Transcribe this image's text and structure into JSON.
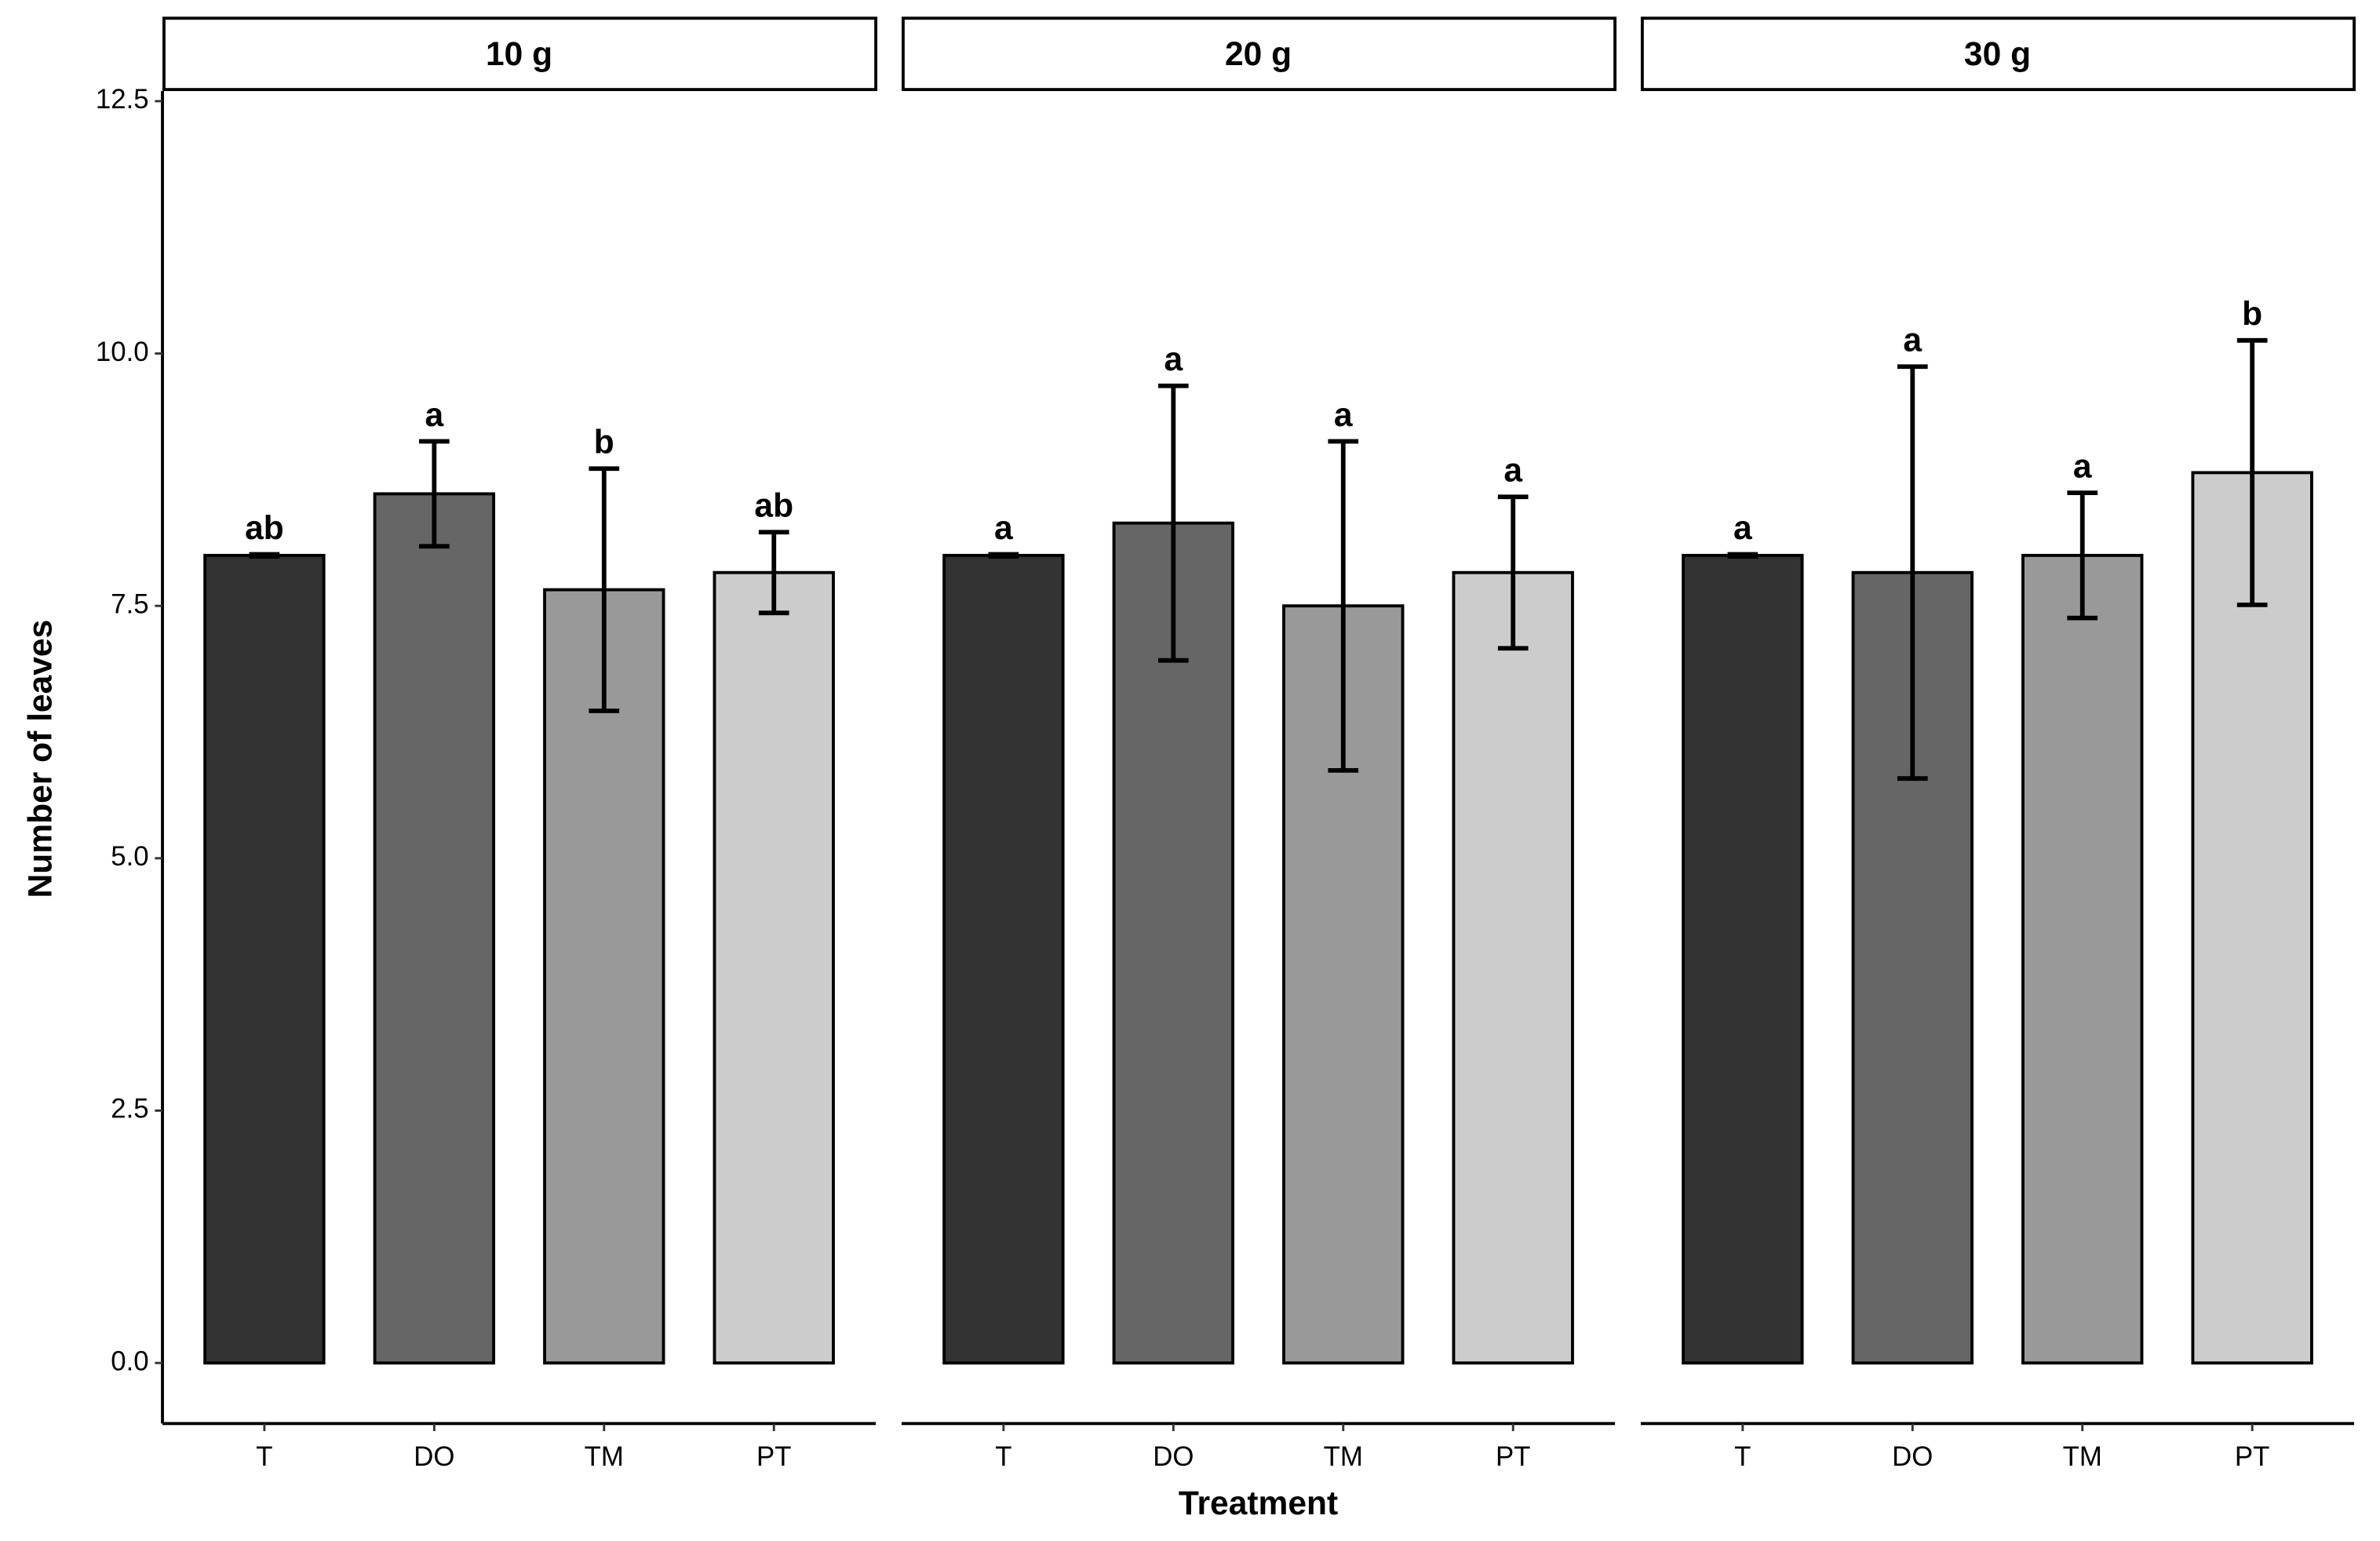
{
  "chart_data": {
    "type": "bar",
    "ylabel": "Number of leaves",
    "xlabel": "Treatment",
    "ylim": [
      -0.6,
      12.6
    ],
    "yticks": [
      {
        "value": 0,
        "label": "0.0"
      },
      2.5,
      {
        "value": 5,
        "label": "5.0"
      },
      7.5,
      {
        "value": 10,
        "label": "10.0"
      },
      12.5
    ],
    "colors": [
      "#333333",
      "#666666",
      "#999999",
      "#cccccc"
    ],
    "facets": [
      {
        "title": "10 g",
        "categories": [
          "T",
          "DO",
          "TM",
          "PT"
        ],
        "values": [
          8.0,
          8.61,
          7.66,
          7.83
        ],
        "errors": [
          0.01,
          0.52,
          1.2,
          0.4
        ],
        "letters": [
          "ab",
          "a",
          "b",
          "ab"
        ]
      },
      {
        "title": "20 g",
        "categories": [
          "T",
          "DO",
          "TM",
          "PT"
        ],
        "values": [
          8.0,
          8.32,
          7.5,
          7.83
        ],
        "errors": [
          0.01,
          1.36,
          1.63,
          0.75
        ],
        "letters": [
          "a",
          "a",
          "a",
          "a"
        ]
      },
      {
        "title": "30 g",
        "categories": [
          "T",
          "DO",
          "TM",
          "PT"
        ],
        "values": [
          8.0,
          7.83,
          8.0,
          8.82
        ],
        "errors": [
          0.01,
          2.04,
          0.62,
          1.31
        ],
        "letters": [
          "a",
          "a",
          "a",
          "b"
        ]
      }
    ]
  }
}
